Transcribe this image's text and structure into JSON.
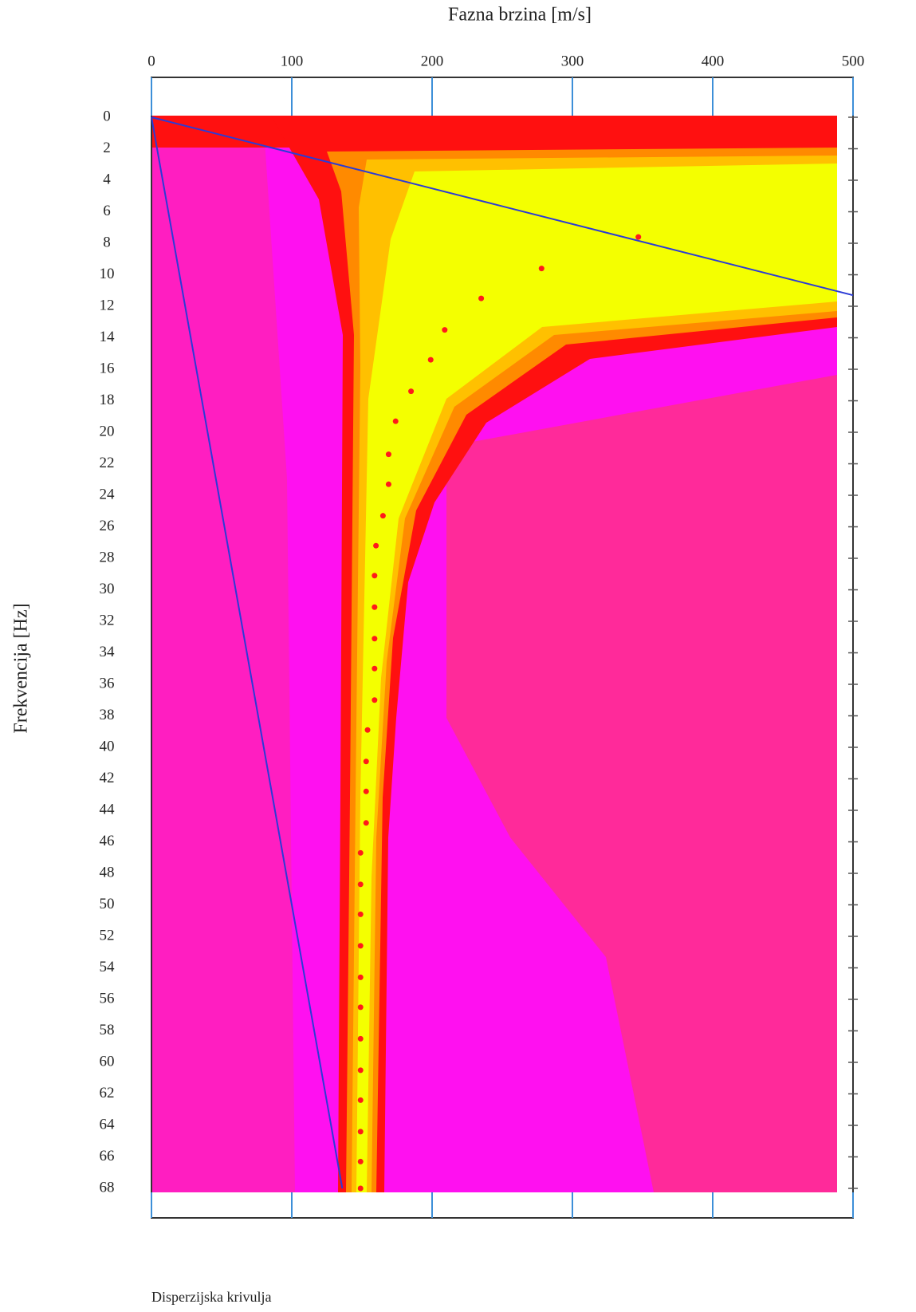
{
  "chart_data": {
    "type": "scatter",
    "x_label": "Fazna brzina [m/s]",
    "y_label": "Frekvencija [Hz]",
    "annotation": "Disperzijska krivulja",
    "xlim": [
      0,
      500
    ],
    "ylim": [
      0,
      68
    ],
    "y_inverted": true,
    "xticks": [
      0,
      100,
      200,
      300,
      400,
      500
    ],
    "yticks": [
      0,
      2,
      4,
      6,
      8,
      10,
      12,
      14,
      16,
      18,
      20,
      22,
      24,
      26,
      28,
      30,
      32,
      34,
      36,
      38,
      40,
      42,
      44,
      46,
      48,
      50,
      52,
      54,
      56,
      58,
      60,
      62,
      64,
      66,
      68
    ],
    "tick_color": "#3d8fd8",
    "series": [
      {
        "color": "#ff1a1a",
        "x": [
          347,
          278,
          235,
          209,
          199,
          185,
          174,
          169,
          169,
          165,
          160,
          159,
          159,
          159,
          159,
          159,
          154,
          153,
          153,
          153,
          149,
          149,
          149,
          149,
          149,
          149,
          149,
          149,
          149,
          149,
          149,
          149
        ],
        "y": [
          7.6,
          9.6,
          11.5,
          13.5,
          15.4,
          17.4,
          19.3,
          21.4,
          23.3,
          25.3,
          27.2,
          29.1,
          31.1,
          33.1,
          35.0,
          37.0,
          38.9,
          40.9,
          42.8,
          44.8,
          46.7,
          48.7,
          50.6,
          52.6,
          54.6,
          56.5,
          58.5,
          60.5,
          62.4,
          64.4,
          66.3,
          68
        ]
      }
    ],
    "lines": [
      {
        "color": "#2b3bd6",
        "x": [
          0,
          500
        ],
        "y": [
          0,
          11.3
        ]
      },
      {
        "color": "#2b3bd6",
        "x": [
          0,
          136
        ],
        "y": [
          0,
          68
        ]
      }
    ]
  }
}
